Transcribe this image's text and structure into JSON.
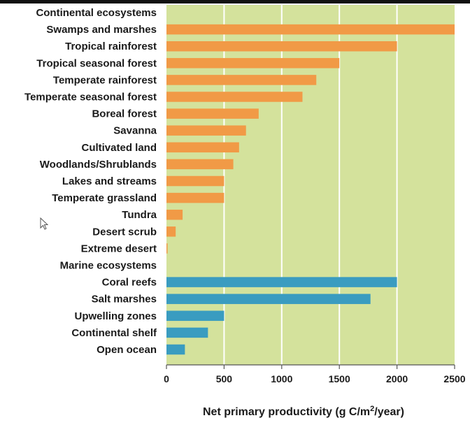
{
  "chart_data": {
    "type": "bar",
    "orientation": "horizontal",
    "xlabel": "Net primary productivity (g C/m² /year)",
    "xlabel_parts": {
      "before": "Net primary productivity (g C/m",
      "superscript": "2",
      "after": "/year)"
    },
    "xlim": [
      0,
      2500
    ],
    "xticks": [
      0,
      500,
      1000,
      1500,
      2000,
      2500
    ],
    "grid": true,
    "colors": {
      "background": "#d4e29c",
      "grid": "#ffffff",
      "continental": "#f19a46",
      "marine": "#3a9cc0",
      "axis": "#555555"
    },
    "groups": [
      {
        "heading": "Continental ecosystems",
        "series_key": "continental",
        "categories": [
          "Swamps and marshes",
          "Tropical rainforest",
          "Tropical seasonal forest",
          "Temperate rainforest",
          "Temperate seasonal forest",
          "Boreal forest",
          "Savanna",
          "Cultivated land",
          "Woodlands/Shrublands",
          "Lakes and streams",
          "Temperate grassland",
          "Tundra",
          "Desert scrub",
          "Extreme desert"
        ],
        "values": [
          2500,
          2000,
          1500,
          1300,
          1180,
          800,
          690,
          630,
          580,
          500,
          500,
          140,
          80,
          5
        ]
      },
      {
        "heading": "Marine ecosystems",
        "series_key": "marine",
        "categories": [
          "Coral reefs",
          "Salt marshes",
          "Upwelling zones",
          "Continental shelf",
          "Open ocean"
        ],
        "values": [
          2000,
          1770,
          500,
          360,
          160
        ]
      }
    ]
  }
}
